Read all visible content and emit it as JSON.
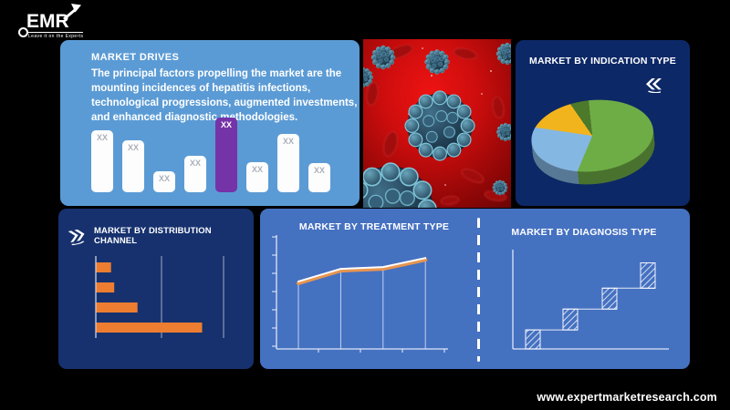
{
  "logo": {
    "text": "EMR",
    "tagline": "Leave it on the Experts"
  },
  "footer": {
    "url": "www.expertmarketresearch.com"
  },
  "market_drives": {
    "title": "MARKET DRIVES",
    "description": "The principal factors propelling the market are the mounting incidences of hepatitis infections, technological progressions, augmented investments, and enhanced diagnostic methodologies."
  },
  "indication": {
    "title": "MARKET BY INDICATION TYPE",
    "icon": "double-arrow-back-icon"
  },
  "distribution": {
    "title": "MARKET BY DISTRIBUTION CHANNEL",
    "icon": "double-arrow-forward-icon"
  },
  "treatment": {
    "title": "MARKET BY TREATMENT TYPE"
  },
  "diagnosis": {
    "title": "MARKET BY DIAGNOSIS TYPE"
  },
  "colors": {
    "background": "#000000",
    "drives_panel": "#5b9bd5",
    "navy_panel": "#0d2866",
    "navy_panel_2": "#16316e",
    "bottom_panel": "#4571c1",
    "bar_white": "#fdfdfd",
    "bar_highlight_purple": "#7533a8",
    "orange": "#ed7d31",
    "line_orange": "#e8954f",
    "white": "#ffffff"
  },
  "chart_data": [
    {
      "type": "bar",
      "panel": "market-drives",
      "title": "MARKET DRIVES",
      "categories": [
        "1",
        "2",
        "3",
        "4",
        "5",
        "6",
        "7",
        "8"
      ],
      "values": [
        83,
        70,
        28,
        49,
        100,
        40,
        78,
        39
      ],
      "data_labels": [
        "XX",
        "XX",
        "XX",
        "XX",
        "XX",
        "XX",
        "XX",
        "XX"
      ],
      "highlight_index": 4,
      "bar_color": "#fdfdfd",
      "highlight_color": "#7533a8",
      "ylim": [
        0,
        100
      ],
      "grid": false
    },
    {
      "type": "pie",
      "panel": "indication",
      "title": "MARKET BY INDICATION TYPE",
      "style": "3d",
      "slices": [
        {
          "name": "slice-green",
          "value": 58,
          "color": "#6ead45"
        },
        {
          "name": "slice-blue",
          "value": 21,
          "color": "#85b7e3"
        },
        {
          "name": "slice-yellow",
          "value": 13,
          "color": "#f1b41c"
        },
        {
          "name": "slice-dark-green",
          "value": 8,
          "color": "#4d792b"
        }
      ],
      "legend": "none"
    },
    {
      "type": "bar",
      "orientation": "horizontal",
      "panel": "distribution",
      "title": "MARKET BY DISTRIBUTION CHANNEL",
      "categories": [
        "1",
        "2",
        "3",
        "4"
      ],
      "values": [
        14,
        17,
        39,
        100
      ],
      "bar_color": "#ed7d31",
      "xlim": [
        0,
        100
      ],
      "grid": true
    },
    {
      "type": "line",
      "panel": "treatment",
      "title": "MARKET BY TREATMENT TYPE",
      "x": [
        1,
        2,
        3,
        4
      ],
      "values": [
        74,
        88,
        90,
        100
      ],
      "line_color": "#e8954f",
      "highlight_color": "#ffffff",
      "drop_lines": true,
      "ylim": [
        0,
        100
      ],
      "grid": false
    },
    {
      "type": "waterfall",
      "panel": "diagnosis",
      "title": "MARKET BY DIAGNOSIS TYPE",
      "categories": [
        "1",
        "2",
        "3",
        "4"
      ],
      "segments": [
        21,
        23,
        23,
        28
      ],
      "cumulative": [
        21,
        44,
        67,
        95
      ],
      "pattern": "diagonal-hatch",
      "ylim": [
        0,
        100
      ],
      "grid": false
    }
  ]
}
